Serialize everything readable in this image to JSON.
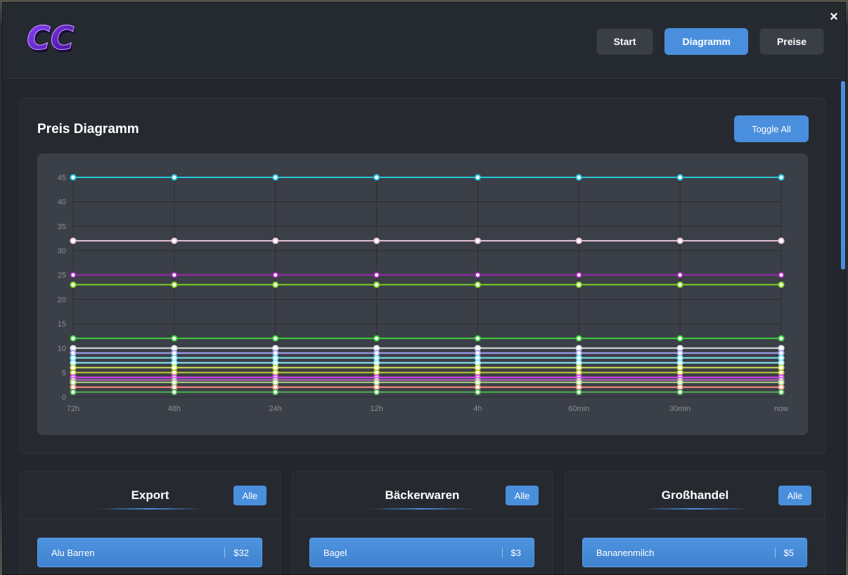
{
  "app": {
    "logo_text": "CC",
    "close_label": "×"
  },
  "nav": {
    "items": [
      {
        "label": "Start",
        "active": false
      },
      {
        "label": "Diagramm",
        "active": true
      },
      {
        "label": "Preise",
        "active": false
      }
    ]
  },
  "chart_panel": {
    "title": "Preis Diagramm",
    "toggle_label": "Toggle All"
  },
  "chart_data": {
    "type": "line",
    "title": "",
    "xlabel": "",
    "ylabel": "",
    "categories": [
      "72h",
      "48h",
      "24h",
      "12h",
      "4h",
      "60min",
      "30min",
      "now"
    ],
    "ylim": [
      0,
      45
    ],
    "yticks": [
      0,
      5,
      10,
      15,
      20,
      25,
      30,
      35,
      40,
      45
    ],
    "grid": true,
    "series": [
      {
        "color": "#26c6da",
        "value": 45
      },
      {
        "color": "#e8c3dc",
        "value": 32
      },
      {
        "color": "#9c27b0",
        "value": 25
      },
      {
        "color": "#7ed321",
        "value": 23
      },
      {
        "color": "#3ecf3e",
        "value": 12
      },
      {
        "color": "#e0e0e0",
        "value": 10
      },
      {
        "color": "#a6a6ff",
        "value": 9
      },
      {
        "color": "#7fe5f0",
        "value": 8
      },
      {
        "color": "#8ff0ff",
        "value": 7
      },
      {
        "color": "#d4e157",
        "value": 6
      },
      {
        "color": "#c0ca33",
        "value": 5
      },
      {
        "color": "#e040fb",
        "value": 4
      },
      {
        "color": "#ba68c8",
        "value": 3.5
      },
      {
        "color": "#ff8a80",
        "value": 2
      },
      {
        "color": "#aed581",
        "value": 3
      },
      {
        "color": "#4caf50",
        "value": 1
      }
    ]
  },
  "cards": [
    {
      "title": "Export",
      "button": "Alle",
      "item": {
        "name": "Alu Barren",
        "price": "$32"
      }
    },
    {
      "title": "Bäckerwaren",
      "button": "Alle",
      "item": {
        "name": "Bagel",
        "price": "$3"
      }
    },
    {
      "title": "Großhandel",
      "button": "Alle",
      "item": {
        "name": "Bananenmilch",
        "price": "$5"
      }
    }
  ]
}
